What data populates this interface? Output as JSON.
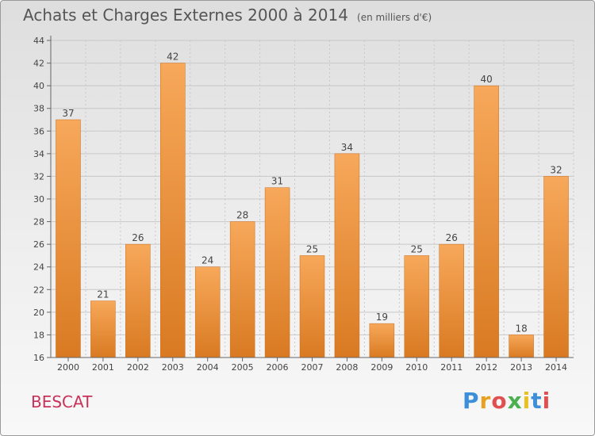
{
  "title": "Achats et Charges Externes 2000 à 2014",
  "subtitle": "(en milliers d'€)",
  "location_label": "BESCAT",
  "brand": {
    "letters": [
      "P",
      "r",
      "o",
      "x",
      "i",
      "t",
      "i"
    ],
    "colors": [
      "#3c8fd8",
      "#e8a020",
      "#e05050",
      "#4cb050",
      "#e8c020",
      "#3c8fd8",
      "#e05050"
    ]
  },
  "colors": {
    "bar_top": "#f7a85a",
    "bar_bottom": "#d97a22",
    "bar_edge": "#c96d1c",
    "place": "#c8325a"
  },
  "chart_data": {
    "type": "bar",
    "categories": [
      "2000",
      "2001",
      "2002",
      "2003",
      "2004",
      "2005",
      "2006",
      "2007",
      "2008",
      "2009",
      "2010",
      "2011",
      "2012",
      "2013",
      "2014"
    ],
    "values": [
      37,
      21,
      26,
      42,
      24,
      28,
      31,
      25,
      34,
      19,
      25,
      26,
      40,
      18,
      32
    ],
    "title": "Achats et Charges Externes 2000 à 2014",
    "subtitle": "(en milliers d'€)",
    "ylim": [
      16,
      44
    ],
    "yticks": [
      16,
      18,
      20,
      22,
      24,
      26,
      28,
      30,
      32,
      34,
      36,
      38,
      40,
      42,
      44
    ],
    "grid": true,
    "data_labels": true
  }
}
